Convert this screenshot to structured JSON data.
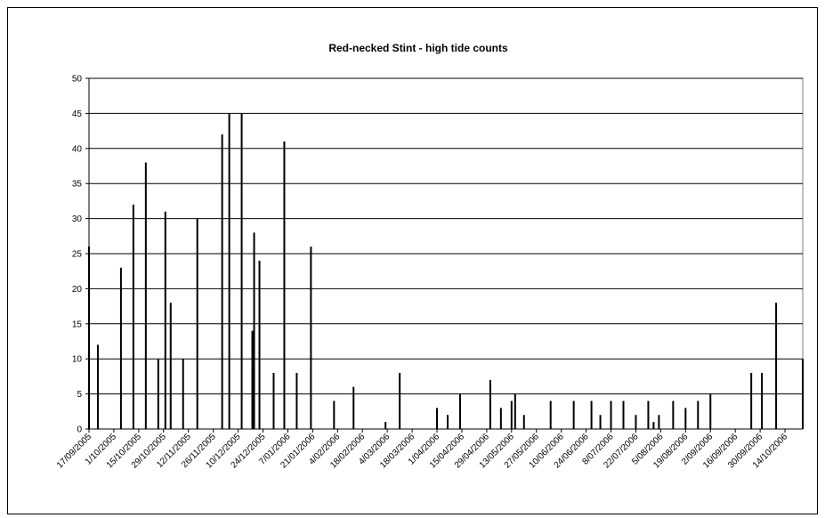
{
  "chart_data": {
    "type": "bar",
    "title": "Red-necked Stint - high tide counts",
    "color": "#000000",
    "grid": true,
    "x": [
      "2005-09-17",
      "2005-09-22",
      "2005-10-05",
      "2005-10-12",
      "2005-10-19",
      "2005-10-26",
      "2005-10-30",
      "2005-11-02",
      "2005-11-09",
      "2005-11-17",
      "2005-12-01",
      "2005-12-05",
      "2005-12-12",
      "2005-12-18",
      "2005-12-19",
      "2005-12-22",
      "2005-12-30",
      "2006-01-05",
      "2006-01-12",
      "2006-01-20",
      "2006-02-02",
      "2006-02-13",
      "2006-03-03",
      "2006-03-11",
      "2006-04-01",
      "2006-04-07",
      "2006-04-14",
      "2006-05-01",
      "2006-05-07",
      "2006-05-13",
      "2006-05-15",
      "2006-05-20",
      "2006-06-04",
      "2006-06-17",
      "2006-06-27",
      "2006-07-02",
      "2006-07-08",
      "2006-07-15",
      "2006-07-22",
      "2006-07-29",
      "2006-08-01",
      "2006-08-04",
      "2006-08-12",
      "2006-08-19",
      "2006-08-26",
      "2006-09-02",
      "2006-09-25",
      "2006-10-01",
      "2006-10-09",
      "2006-10-24"
    ],
    "values": [
      26,
      12,
      23,
      32,
      38,
      10,
      31,
      18,
      10,
      30,
      42,
      45,
      45,
      14,
      28,
      24,
      8,
      41,
      8,
      26,
      4,
      6,
      1,
      8,
      3,
      2,
      5,
      7,
      3,
      4,
      5,
      2,
      4,
      4,
      4,
      2,
      4,
      4,
      2,
      4,
      1,
      2,
      4,
      3,
      4,
      5,
      8,
      8,
      18,
      10
    ],
    "xlim": [
      "2005-09-17",
      "2006-10-24"
    ],
    "xticks": [
      {
        "value": "2005-09-17",
        "label": "17/09/2005"
      },
      {
        "value": "2005-10-01",
        "label": "1/10/2005"
      },
      {
        "value": "2005-10-15",
        "label": "15/10/2005"
      },
      {
        "value": "2005-10-29",
        "label": "29/10/2005"
      },
      {
        "value": "2005-11-12",
        "label": "12/11/2005"
      },
      {
        "value": "2005-11-26",
        "label": "26/11/2005"
      },
      {
        "value": "2005-12-10",
        "label": "10/12/2005"
      },
      {
        "value": "2005-12-24",
        "label": "24/12/2005"
      },
      {
        "value": "2006-01-07",
        "label": "7/01/2006"
      },
      {
        "value": "2006-01-21",
        "label": "21/01/2006"
      },
      {
        "value": "2006-02-04",
        "label": "4/02/2006"
      },
      {
        "value": "2006-02-18",
        "label": "18/02/2006"
      },
      {
        "value": "2006-03-04",
        "label": "4/03/2006"
      },
      {
        "value": "2006-03-18",
        "label": "18/03/2006"
      },
      {
        "value": "2006-04-01",
        "label": "1/04/2006"
      },
      {
        "value": "2006-04-15",
        "label": "15/04/2006"
      },
      {
        "value": "2006-04-29",
        "label": "29/04/2006"
      },
      {
        "value": "2006-05-13",
        "label": "13/05/2006"
      },
      {
        "value": "2006-05-27",
        "label": "27/05/2006"
      },
      {
        "value": "2006-06-10",
        "label": "10/06/2006"
      },
      {
        "value": "2006-06-24",
        "label": "24/06/2006"
      },
      {
        "value": "2006-07-08",
        "label": "8/07/2006"
      },
      {
        "value": "2006-07-22",
        "label": "22/07/2006"
      },
      {
        "value": "2006-08-05",
        "label": "5/08/2006"
      },
      {
        "value": "2006-08-19",
        "label": "19/08/2006"
      },
      {
        "value": "2006-09-02",
        "label": "2/09/2006"
      },
      {
        "value": "2006-09-16",
        "label": "16/09/2006"
      },
      {
        "value": "2006-09-30",
        "label": "30/09/2006"
      },
      {
        "value": "2006-10-14",
        "label": "14/10/2006"
      }
    ],
    "ylim": [
      0,
      50
    ],
    "yticks": [
      0,
      5,
      10,
      15,
      20,
      25,
      30,
      35,
      40,
      45,
      50
    ]
  }
}
